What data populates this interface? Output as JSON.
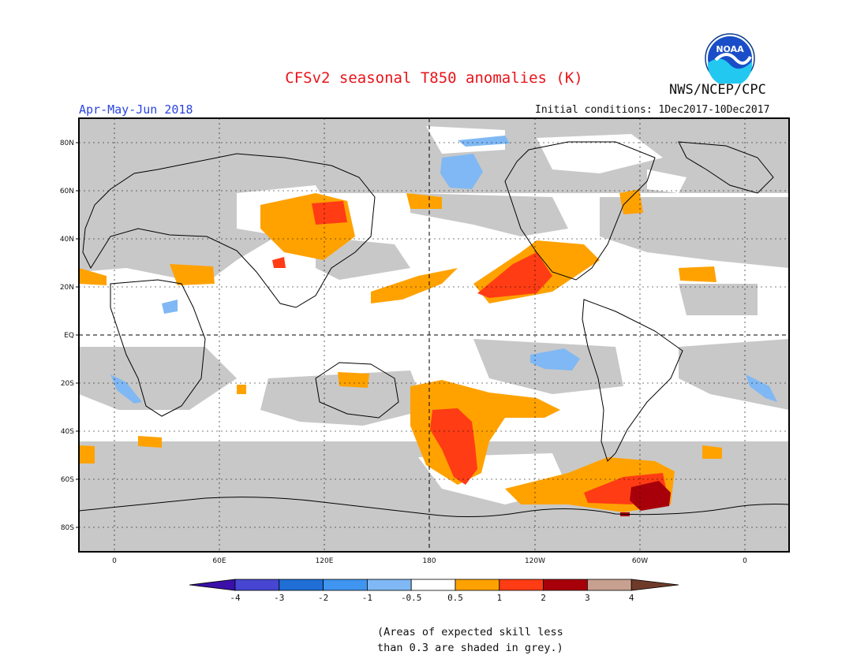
{
  "title": "CFSv2 seasonal T850 anomalies (K)",
  "organization": "NWS/NCEP/CPC",
  "logo_text": "NOAA",
  "period": "Apr-May-Jun 2018",
  "initial_conditions": "Initial conditions: 1Dec2017-10Dec2017",
  "map": {
    "latitude_labels": [
      "80N",
      "60N",
      "40N",
      "20N",
      "EQ",
      "20S",
      "40S",
      "60S",
      "80S"
    ],
    "longitude_labels": [
      "0",
      "60E",
      "120E",
      "180",
      "120W",
      "60W",
      "0"
    ],
    "land_color": "#c8c8c8",
    "ocean_color": "#ffffff"
  },
  "legend": {
    "labels": [
      "-4",
      "-3",
      "-2",
      "-1",
      "-0.5",
      "0.5",
      "1",
      "2",
      "3",
      "4"
    ],
    "colors": [
      "#3a10a8",
      "#4646d2",
      "#1f6fd6",
      "#3f95ef",
      "#7fb8f4",
      "#ffffff",
      "#ffa200",
      "#ff3c14",
      "#a8000a",
      "#c8a090",
      "#6e3b2a"
    ]
  },
  "footnote": {
    "line1": "(Areas of expected skill less",
    "line2": "than 0.3 are shaded in grey.)"
  }
}
